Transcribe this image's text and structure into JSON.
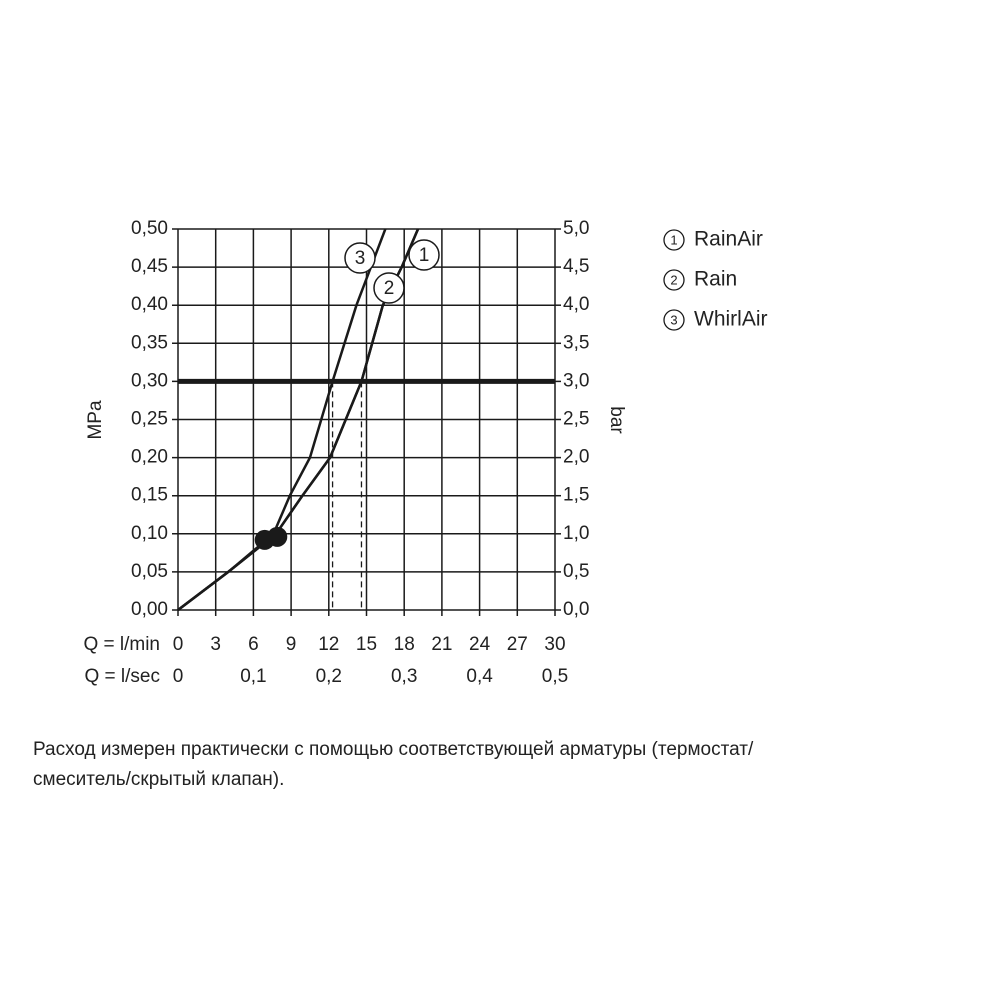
{
  "chart_data": {
    "type": "line",
    "xlabel": "Q = l/min",
    "x2label": "Q = l/sec",
    "ylabel": "MPa",
    "y2label": "bar",
    "xlim": [
      0,
      30
    ],
    "xticks": [
      0,
      3,
      6,
      9,
      12,
      15,
      18,
      21,
      24,
      27,
      30
    ],
    "x2lim": [
      0,
      0.5
    ],
    "x2ticks": [
      0,
      {
        "value": 0.1,
        "label": "0,1"
      },
      {
        "value": 0.2,
        "label": "0,2"
      },
      {
        "value": 0.3,
        "label": "0,3"
      },
      {
        "value": 0.4,
        "label": "0,4"
      },
      {
        "value": 0.5,
        "label": "0,5"
      }
    ],
    "ylim": [
      0,
      0.5
    ],
    "yticks": [
      {
        "value": 0,
        "label": "0,00"
      },
      {
        "value": 0.05,
        "label": "0,05"
      },
      {
        "value": 0.1,
        "label": "0,10"
      },
      {
        "value": 0.15,
        "label": "0,15"
      },
      {
        "value": 0.2,
        "label": "0,20"
      },
      {
        "value": 0.25,
        "label": "0,25"
      },
      {
        "value": 0.3,
        "label": "0,30"
      },
      {
        "value": 0.35,
        "label": "0,35"
      },
      {
        "value": 0.4,
        "label": "0,40"
      },
      {
        "value": 0.45,
        "label": "0,45"
      },
      {
        "value": 0.5,
        "label": "0,50"
      }
    ],
    "y2lim": [
      0,
      5
    ],
    "y2ticks": [
      {
        "value": 0,
        "label": "0,0"
      },
      {
        "value": 0.5,
        "label": "0,5"
      },
      {
        "value": 1,
        "label": "1,0"
      },
      {
        "value": 1.5,
        "label": "1,5"
      },
      {
        "value": 2,
        "label": "2,0"
      },
      {
        "value": 2.5,
        "label": "2,5"
      },
      {
        "value": 3,
        "label": "3,0"
      },
      {
        "value": 3.5,
        "label": "3,5"
      },
      {
        "value": 4,
        "label": "4,0"
      },
      {
        "value": 4.5,
        "label": "4,5"
      },
      {
        "value": 5,
        "label": "5,0"
      }
    ],
    "grid": true,
    "color": "#1a1a1a",
    "reference_y": 0.3,
    "dashed_x": [
      12.3,
      14.6
    ],
    "points": {
      "x": [
        6.9,
        7.9
      ],
      "values": [
        0.092,
        0.096
      ]
    },
    "series": [
      {
        "name": "RainAir",
        "label": "1",
        "x": [
          0,
          4,
          7.8,
          9.9,
          12.1,
          14.6,
          16.3,
          17.8,
          19.1
        ],
        "values": [
          0,
          0.05,
          0.1,
          0.15,
          0.2,
          0.3,
          0.4,
          0.45,
          0.5
        ]
      },
      {
        "name": "Rain",
        "label": "2",
        "x": [
          0,
          4,
          7.8,
          9.9,
          12.1,
          14.6,
          16.3,
          17.8,
          19.1
        ],
        "values": [
          0,
          0.05,
          0.1,
          0.15,
          0.2,
          0.3,
          0.4,
          0.45,
          0.5
        ]
      },
      {
        "name": "WhirlAir",
        "label": "3",
        "x": [
          0,
          4,
          7.6,
          8.9,
          10.5,
          12.3,
          14.2,
          16.5
        ],
        "values": [
          0,
          0.05,
          0.1,
          0.15,
          0.2,
          0.3,
          0.4,
          0.5
        ]
      }
    ],
    "note_lines": [
      "Расход измерен практически с помощью соответствующей арматуры (термостат/",
      "смеситель/скрытый клапан)."
    ]
  }
}
